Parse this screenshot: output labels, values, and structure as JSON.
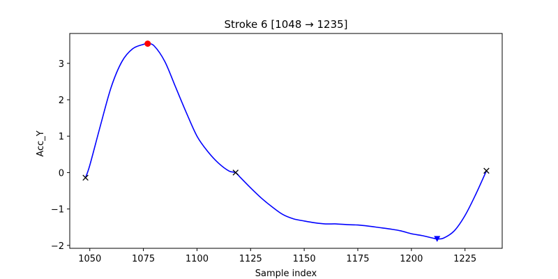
{
  "chart_data": {
    "type": "line",
    "title": "Stroke 6  [1048 → 1235]",
    "xlabel": "Sample index",
    "ylabel": "Acc_Y",
    "xlim": [
      1040.65,
      1242.35
    ],
    "ylim": [
      -2.08,
      3.82
    ],
    "xticks": [
      1050,
      1075,
      1100,
      1125,
      1150,
      1175,
      1200,
      1225
    ],
    "yticks": [
      -2,
      -1,
      0,
      1,
      2,
      3
    ],
    "grid": false,
    "legend": "none",
    "colors": {
      "line": "#0000ff",
      "max_marker": "#ff0000",
      "min_marker": "#0000ff",
      "cross_marker": "#000000"
    },
    "series": [
      {
        "x": [
          1048,
          1050,
          1055,
          1060,
          1065,
          1070,
          1075,
          1077,
          1080,
          1085,
          1090,
          1095,
          1100,
          1105,
          1110,
          1115,
          1118,
          1120,
          1125,
          1130,
          1135,
          1140,
          1145,
          1150,
          1155,
          1160,
          1165,
          1170,
          1175,
          1180,
          1185,
          1190,
          1195,
          1200,
          1205,
          1210,
          1212,
          1215,
          1220,
          1225,
          1230,
          1235
        ],
        "y": [
          -0.14,
          0.2,
          1.3,
          2.35,
          3.05,
          3.4,
          3.52,
          3.54,
          3.48,
          3.05,
          2.35,
          1.65,
          1.0,
          0.58,
          0.26,
          0.04,
          0.0,
          -0.12,
          -0.42,
          -0.7,
          -0.94,
          -1.15,
          -1.27,
          -1.33,
          -1.38,
          -1.41,
          -1.41,
          -1.43,
          -1.44,
          -1.47,
          -1.51,
          -1.55,
          -1.6,
          -1.68,
          -1.73,
          -1.8,
          -1.82,
          -1.8,
          -1.6,
          -1.18,
          -0.6,
          0.05
        ]
      }
    ],
    "markers": {
      "max": {
        "x": 1077,
        "y": 3.54
      },
      "min": {
        "x": 1212,
        "y": -1.82
      },
      "crossings": [
        {
          "x": 1048,
          "y": -0.14
        },
        {
          "x": 1118,
          "y": 0.0
        },
        {
          "x": 1235,
          "y": 0.05
        }
      ]
    }
  }
}
